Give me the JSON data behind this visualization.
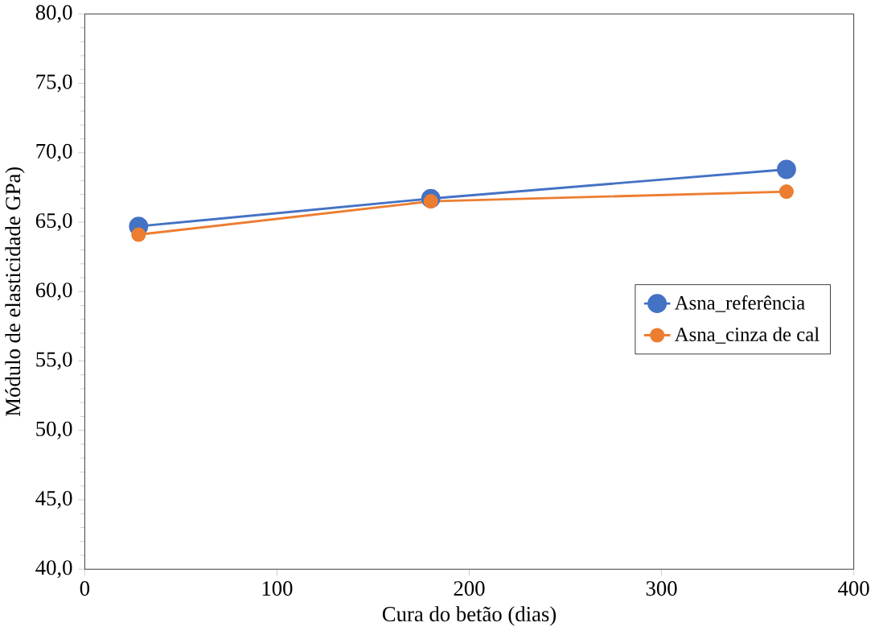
{
  "chart_data": {
    "type": "line",
    "xlabel": "Cura do betão (dias)",
    "ylabel": "Módulo de elasticidade  GPa)",
    "x": [
      28,
      180,
      365
    ],
    "series": [
      {
        "name": "Asna_referência",
        "color": "#4472c4",
        "values": [
          64.7,
          66.7,
          68.8
        ]
      },
      {
        "name": "Asna_cinza de cal",
        "color": "#ed7d31",
        "values": [
          64.1,
          66.5,
          67.2
        ]
      }
    ],
    "xlim": [
      0,
      400
    ],
    "xticks": [
      0,
      100,
      200,
      300,
      400
    ],
    "ylim": [
      40,
      80
    ],
    "yticks": [
      {
        "value": 40,
        "label": "40,0"
      },
      {
        "value": 45,
        "label": "45,0"
      },
      {
        "value": 50,
        "label": "50,0"
      },
      {
        "value": 55,
        "label": "55,0"
      },
      {
        "value": 60,
        "label": "60,0"
      },
      {
        "value": 65,
        "label": "65,0"
      },
      {
        "value": 70,
        "label": "70,0"
      },
      {
        "value": 75,
        "label": "75,0"
      },
      {
        "value": 80,
        "label": "80,0"
      }
    ],
    "marker": "circle",
    "line_style": "solid",
    "legend": "right",
    "grid": false
  }
}
